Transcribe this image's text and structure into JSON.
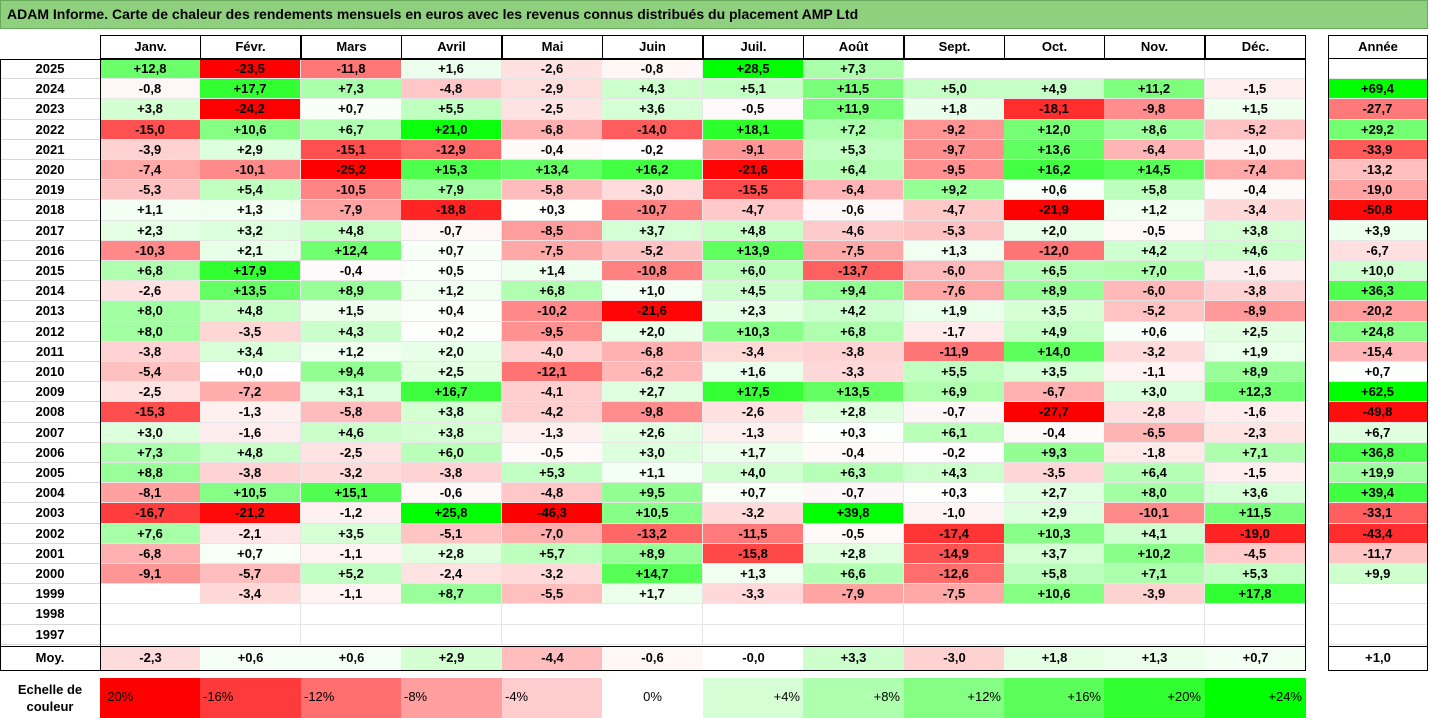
{
  "title": "ADAM Informe. Carte de chaleur des rendements mensuels en euros avec les revenus connus distribués du placement AMP Ltd",
  "chart_data": {
    "type": "heatmap",
    "title": "ADAM Informe. Carte de chaleur des rendements mensuels en euros avec les revenus connus distribués du placement AMP Ltd",
    "columns": [
      "Janv.",
      "Févr.",
      "Mars",
      "Avril",
      "Mai",
      "Juin",
      "Juil.",
      "Août",
      "Sept.",
      "Oct.",
      "Nov.",
      "Déc."
    ],
    "year_column_label": "Année",
    "average_row_label": "Moy.",
    "rows": [
      {
        "year": "2025",
        "months": [
          "+12,8",
          "-23,5",
          "-11,8",
          "+1,6",
          "-2,6",
          "-0,8",
          "+28,5",
          "+7,3",
          "",
          "",
          "",
          ""
        ],
        "annual": ""
      },
      {
        "year": "2024",
        "months": [
          "-0,8",
          "+17,7",
          "+7,3",
          "-4,8",
          "-2,9",
          "+4,3",
          "+5,1",
          "+11,5",
          "+5,0",
          "+4,9",
          "+11,2",
          "-1,5"
        ],
        "annual": "+69,4"
      },
      {
        "year": "2023",
        "months": [
          "+3,8",
          "-24,2",
          "+0,7",
          "+5,5",
          "-2,5",
          "+3,6",
          "-0,5",
          "+11,9",
          "+1,8",
          "-18,1",
          "-9,8",
          "+1,5"
        ],
        "annual": "-27,7"
      },
      {
        "year": "2022",
        "months": [
          "-15,0",
          "+10,6",
          "+6,7",
          "+21,0",
          "-6,8",
          "-14,0",
          "+18,1",
          "+7,2",
          "-9,2",
          "+12,0",
          "+8,6",
          "-5,2"
        ],
        "annual": "+29,2"
      },
      {
        "year": "2021",
        "months": [
          "-3,9",
          "+2,9",
          "-15,1",
          "-12,9",
          "-0,4",
          "-0,2",
          "-9,1",
          "+5,3",
          "-9,7",
          "+13,6",
          "-6,4",
          "-1,0"
        ],
        "annual": "-33,9"
      },
      {
        "year": "2020",
        "months": [
          "-7,4",
          "-10,1",
          "-25,2",
          "+15,3",
          "+13,4",
          "+16,2",
          "-21,6",
          "+6,4",
          "-9,5",
          "+16,2",
          "+14,5",
          "-7,4"
        ],
        "annual": "-13,2"
      },
      {
        "year": "2019",
        "months": [
          "-5,3",
          "+5,4",
          "-10,5",
          "+7,9",
          "-5,8",
          "-3,0",
          "-15,5",
          "-6,4",
          "+9,2",
          "+0,6",
          "+5,8",
          "-0,4"
        ],
        "annual": "-19,0"
      },
      {
        "year": "2018",
        "months": [
          "+1,1",
          "+1,3",
          "-7,9",
          "-18,8",
          "+0,3",
          "-10,7",
          "-4,7",
          "-0,6",
          "-4,7",
          "-21,9",
          "+1,2",
          "-3,4"
        ],
        "annual": "-50,8"
      },
      {
        "year": "2017",
        "months": [
          "+2,3",
          "+3,2",
          "+4,8",
          "-0,7",
          "-8,5",
          "+3,7",
          "+4,8",
          "-4,6",
          "-5,3",
          "+2,0",
          "-0,5",
          "+3,8"
        ],
        "annual": "+3,9"
      },
      {
        "year": "2016",
        "months": [
          "-10,3",
          "+2,1",
          "+12,4",
          "+0,7",
          "-7,5",
          "-5,2",
          "+13,9",
          "-7,5",
          "+1,3",
          "-12,0",
          "+4,2",
          "+4,6"
        ],
        "annual": "-6,7"
      },
      {
        "year": "2015",
        "months": [
          "+6,8",
          "+17,9",
          "-0,4",
          "+0,5",
          "+1,4",
          "-10,8",
          "+6,0",
          "-13,7",
          "-6,0",
          "+6,5",
          "+7,0",
          "-1,6"
        ],
        "annual": "+10,0"
      },
      {
        "year": "2014",
        "months": [
          "-2,6",
          "+13,5",
          "+8,9",
          "+1,2",
          "+6,8",
          "+1,0",
          "+4,5",
          "+9,4",
          "-7,6",
          "+8,9",
          "-6,0",
          "-3,8"
        ],
        "annual": "+36,3"
      },
      {
        "year": "2013",
        "months": [
          "+8,0",
          "+4,8",
          "+1,5",
          "+0,4",
          "-10,2",
          "-21,6",
          "+2,3",
          "+4,2",
          "+1,9",
          "+3,5",
          "-5,2",
          "-8,9"
        ],
        "annual": "-20,2"
      },
      {
        "year": "2012",
        "months": [
          "+8,0",
          "-3,5",
          "+4,3",
          "+0,2",
          "-9,5",
          "+2,0",
          "+10,3",
          "+6,8",
          "-1,7",
          "+4,9",
          "+0,6",
          "+2,5"
        ],
        "annual": "+24,8"
      },
      {
        "year": "2011",
        "months": [
          "-3,8",
          "+3,4",
          "+1,2",
          "+2,0",
          "-4,0",
          "-6,8",
          "-3,4",
          "-3,8",
          "-11,9",
          "+14,0",
          "-3,2",
          "+1,9"
        ],
        "annual": "-15,4"
      },
      {
        "year": "2010",
        "months": [
          "-5,4",
          "+0,0",
          "+9,4",
          "+2,5",
          "-12,1",
          "-6,2",
          "+1,6",
          "-3,3",
          "+5,5",
          "+3,5",
          "-1,1",
          "+8,9"
        ],
        "annual": "+0,7"
      },
      {
        "year": "2009",
        "months": [
          "-2,5",
          "-7,2",
          "+3,1",
          "+16,7",
          "-4,1",
          "+2,7",
          "+17,5",
          "+13,5",
          "+6,9",
          "-6,7",
          "+3,0",
          "+12,3"
        ],
        "annual": "+62,5"
      },
      {
        "year": "2008",
        "months": [
          "-15,3",
          "-1,3",
          "-5,8",
          "+3,8",
          "-4,2",
          "-9,8",
          "-2,6",
          "+2,8",
          "-0,7",
          "-27,7",
          "-2,8",
          "-1,6"
        ],
        "annual": "-49,8"
      },
      {
        "year": "2007",
        "months": [
          "+3,0",
          "-1,6",
          "+4,6",
          "+3,8",
          "-1,3",
          "+2,6",
          "-1,3",
          "+0,3",
          "+6,1",
          "-0,4",
          "-6,5",
          "-2,3"
        ],
        "annual": "+6,7"
      },
      {
        "year": "2006",
        "months": [
          "+7,3",
          "+4,8",
          "-2,5",
          "+6,0",
          "-0,5",
          "+3,0",
          "+1,7",
          "-0,4",
          "-0,2",
          "+9,3",
          "-1,8",
          "+7,1"
        ],
        "annual": "+36,8"
      },
      {
        "year": "2005",
        "months": [
          "+8,8",
          "-3,8",
          "-3,2",
          "-3,8",
          "+5,3",
          "+1,1",
          "+4,0",
          "+6,3",
          "+4,3",
          "-3,5",
          "+6,4",
          "-1,5"
        ],
        "annual": "+19,9"
      },
      {
        "year": "2004",
        "months": [
          "-8,1",
          "+10,5",
          "+15,1",
          "-0,6",
          "-4,8",
          "+9,5",
          "+0,7",
          "-0,7",
          "+0,3",
          "+2,7",
          "+8,0",
          "+3,6"
        ],
        "annual": "+39,4"
      },
      {
        "year": "2003",
        "months": [
          "-16,7",
          "-21,2",
          "-1,2",
          "+25,8",
          "-46,3",
          "+10,5",
          "-3,2",
          "+39,8",
          "-1,0",
          "+2,9",
          "-10,1",
          "+11,5"
        ],
        "annual": "-33,1"
      },
      {
        "year": "2002",
        "months": [
          "+7,6",
          "-2,1",
          "+3,5",
          "-5,1",
          "-7,0",
          "-13,2",
          "-11,5",
          "-0,5",
          "-17,4",
          "+10,3",
          "+4,1",
          "-19,0"
        ],
        "annual": "-43,4"
      },
      {
        "year": "2001",
        "months": [
          "-6,8",
          "+0,7",
          "-1,1",
          "+2,8",
          "+5,7",
          "+8,9",
          "-15,8",
          "+2,8",
          "-14,9",
          "+3,7",
          "+10,2",
          "-4,5"
        ],
        "annual": "-11,7"
      },
      {
        "year": "2000",
        "months": [
          "-9,1",
          "-5,7",
          "+5,2",
          "-2,4",
          "-3,2",
          "+14,7",
          "+1,3",
          "+6,6",
          "-12,6",
          "+5,8",
          "+7,1",
          "+5,3"
        ],
        "annual": "+9,9"
      },
      {
        "year": "1999",
        "months": [
          "",
          "-3,4",
          "-1,1",
          "+8,7",
          "-5,5",
          "+1,7",
          "-3,3",
          "-7,9",
          "-7,5",
          "+10,6",
          "-3,9",
          "+17,8"
        ],
        "annual": ""
      },
      {
        "year": "1998",
        "months": [
          "",
          "",
          "",
          "",
          "",
          "",
          "",
          "",
          "",
          "",
          "",
          ""
        ],
        "annual": ""
      },
      {
        "year": "1997",
        "months": [
          "",
          "",
          "",
          "",
          "",
          "",
          "",
          "",
          "",
          "",
          "",
          ""
        ],
        "annual": ""
      }
    ],
    "averages": {
      "months": [
        "-2,3",
        "+0,6",
        "+0,6",
        "+2,9",
        "-4,4",
        "-0,6",
        "-0,0",
        "+3,3",
        "-3,0",
        "+1,8",
        "+1,3",
        "+0,7"
      ],
      "annual": "+1,0"
    },
    "color_scale": {
      "label_line1": "Echelle de",
      "label_line2": "couleur",
      "steps": [
        {
          "label": "-20%",
          "value": -20,
          "color": "#ff0000"
        },
        {
          "label": "-16%",
          "value": -16,
          "color": "#ff3a3a"
        },
        {
          "label": "-12%",
          "value": -12,
          "color": "#ff6f6f"
        },
        {
          "label": "-8%",
          "value": -8,
          "color": "#ff9e9e"
        },
        {
          "label": "-4%",
          "value": -4,
          "color": "#ffcdcd"
        },
        {
          "label": "0%",
          "value": 0,
          "color": "#ffffff"
        },
        {
          "label": "+4%",
          "value": 4,
          "color": "#d6ffd6"
        },
        {
          "label": "+8%",
          "value": 8,
          "color": "#aeffae"
        },
        {
          "label": "+12%",
          "value": 12,
          "color": "#84ff84"
        },
        {
          "label": "+16%",
          "value": 16,
          "color": "#5aff5a"
        },
        {
          "label": "+20%",
          "value": 20,
          "color": "#30ff30"
        },
        {
          "label": "+24%",
          "value": 24,
          "color": "#00ff00"
        }
      ]
    },
    "colors": {
      "title_bar": "#8fd07f",
      "negative_max": "#ff0000",
      "positive_max": "#00ff00",
      "neutral": "#ffffff"
    }
  }
}
